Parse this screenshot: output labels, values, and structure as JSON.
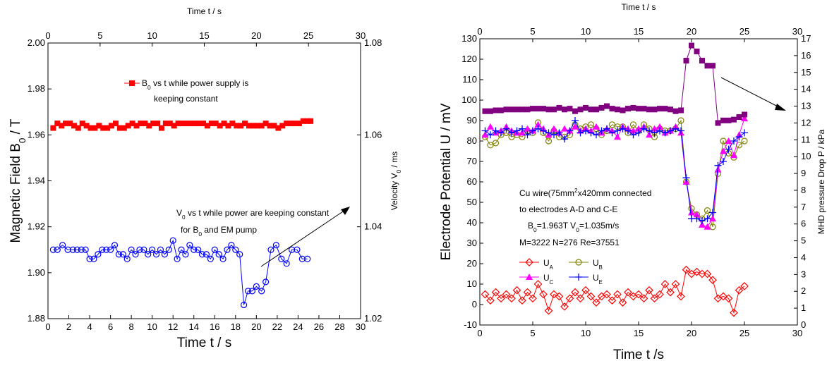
{
  "chart_data": [
    {
      "type": "scatter",
      "xlabel": "Time t / s",
      "x2label": "Time t / s",
      "ylabel": "Magnetic Field B0 / T",
      "y2label": "Velocity V0 / ms",
      "xlim": [
        0,
        30
      ],
      "x2lim": [
        0,
        30
      ],
      "ylim": [
        1.88,
        2.0
      ],
      "y2lim": [
        1.02,
        1.08
      ],
      "xticks": [
        "0",
        "2",
        "4",
        "6",
        "8",
        "10",
        "12",
        "14",
        "16",
        "18",
        "20",
        "22",
        "24",
        "26",
        "28",
        "30"
      ],
      "x2ticks": [
        "0",
        "5",
        "10",
        "15",
        "20",
        "25",
        "30"
      ],
      "yticks": [
        "1.88",
        "1.90",
        "1.92",
        "1.94",
        "1.96",
        "1.98",
        "2.00"
      ],
      "y2ticks": [
        "1.02",
        "1.04",
        "1.06",
        "1.08"
      ],
      "annotations": [
        "B0 vs t  while power supply is",
        "keeping constant",
        "V0 vs t while power are keeping constant",
        "for B0 and EM pump"
      ],
      "series": [
        {
          "name": "B0 vs t  while power supply is keeping constant",
          "color": "#ff0000",
          "marker": "filled-square",
          "axis": "left",
          "x": [
            0.5,
            0.9,
            1.3,
            1.7,
            2.1,
            2.5,
            2.9,
            3.3,
            3.7,
            4.1,
            4.5,
            4.9,
            5.3,
            5.7,
            6.1,
            6.5,
            6.9,
            7.3,
            7.7,
            8.1,
            8.5,
            8.9,
            9.3,
            9.7,
            10.1,
            10.5,
            10.9,
            11.3,
            11.7,
            12.1,
            12.5,
            12.9,
            13.3,
            13.7,
            14.1,
            14.5,
            14.9,
            15.3,
            15.7,
            16.1,
            16.5,
            16.9,
            17.3,
            17.7,
            18.1,
            18.5,
            18.9,
            19.3,
            19.7,
            20.1,
            20.5,
            20.9,
            21.3,
            21.7,
            22.1,
            22.5,
            22.9,
            23.3,
            23.7,
            24.1,
            24.5,
            24.9,
            25.2
          ],
          "y": [
            1.963,
            1.965,
            1.964,
            1.965,
            1.965,
            1.964,
            1.963,
            1.965,
            1.964,
            1.963,
            1.963,
            1.964,
            1.963,
            1.963,
            1.964,
            1.965,
            1.963,
            1.963,
            1.964,
            1.965,
            1.964,
            1.965,
            1.965,
            1.964,
            1.965,
            1.965,
            1.963,
            1.965,
            1.965,
            1.964,
            1.965,
            1.965,
            1.965,
            1.965,
            1.965,
            1.965,
            1.965,
            1.964,
            1.965,
            1.965,
            1.964,
            1.965,
            1.964,
            1.965,
            1.964,
            1.964,
            1.965,
            1.964,
            1.964,
            1.964,
            1.964,
            1.965,
            1.964,
            1.964,
            1.963,
            1.964,
            1.965,
            1.965,
            1.965,
            1.965,
            1.966,
            1.966,
            1.966
          ]
        },
        {
          "name": "V0 vs t while power are keeping constant for B0 and EM pump",
          "color": "#0000ff",
          "marker": "open-circle",
          "axis": "left",
          "x": [
            0.5,
            0.9,
            1.4,
            1.9,
            2.4,
            2.8,
            3.2,
            3.6,
            4.0,
            4.4,
            4.8,
            5.2,
            5.6,
            6.0,
            6.4,
            6.8,
            7.2,
            7.6,
            8.0,
            8.4,
            8.8,
            9.2,
            9.6,
            10.0,
            10.4,
            10.8,
            11.2,
            11.6,
            12.0,
            12.4,
            12.8,
            13.2,
            13.6,
            14.0,
            14.4,
            14.8,
            15.2,
            15.6,
            16.0,
            16.4,
            16.8,
            17.2,
            17.6,
            18.0,
            18.4,
            18.8,
            19.2,
            19.6,
            20.0,
            20.5,
            20.9,
            21.4,
            21.9,
            22.4,
            22.9,
            23.4,
            23.9,
            24.4,
            24.9
          ],
          "y": [
            1.91,
            1.91,
            1.912,
            1.91,
            1.91,
            1.91,
            1.91,
            1.91,
            1.906,
            1.906,
            1.908,
            1.91,
            1.91,
            1.91,
            1.912,
            1.908,
            1.908,
            1.906,
            1.91,
            1.908,
            1.91,
            1.91,
            1.908,
            1.91,
            1.908,
            1.91,
            1.908,
            1.91,
            1.914,
            1.906,
            1.91,
            1.908,
            1.912,
            1.91,
            1.91,
            1.908,
            1.908,
            1.906,
            1.91,
            1.908,
            1.906,
            1.91,
            1.912,
            1.91,
            1.908,
            1.886,
            1.892,
            1.892,
            1.894,
            1.892,
            1.896,
            1.91,
            1.912,
            1.906,
            1.904,
            1.91,
            1.91,
            1.906,
            1.906
          ]
        }
      ]
    },
    {
      "type": "scatter",
      "xlabel": "Time t /s",
      "x2label": "Time t / s",
      "ylabel": "Electrode Potential U / mV",
      "y2label": "MHD pressure Drop P / kPa",
      "xlim": [
        0,
        30
      ],
      "x2lim": [
        0,
        30
      ],
      "ylim": [
        -10,
        130
      ],
      "y2lim": [
        0,
        17
      ],
      "xticks": [
        "0",
        "5",
        "10",
        "15",
        "20",
        "25",
        "30"
      ],
      "x2ticks": [
        "0",
        "5",
        "10",
        "15",
        "20",
        "25",
        "30"
      ],
      "yticks": [
        "-10",
        "0",
        "10",
        "20",
        "30",
        "40",
        "50",
        "60",
        "70",
        "80",
        "90",
        "100",
        "110",
        "120",
        "130"
      ],
      "y2ticks": [
        "0",
        "1",
        "2",
        "3",
        "4",
        "5",
        "6",
        "7",
        "8",
        "9",
        "10",
        "11",
        "12",
        "13",
        "14",
        "15",
        "16",
        "17"
      ],
      "annotations": [
        "Cu wire(75mm2x420mm connected",
        "to electrodes A-D and C-E",
        "B0=1.963T V0=1.035m/s",
        "M=3222  N=276 Re=37551"
      ],
      "series": [
        {
          "name": "UA",
          "color": "#ff0000",
          "marker": "open-diamond",
          "x": [
            0.5,
            1.0,
            1.5,
            2.0,
            2.5,
            3.0,
            3.5,
            4.0,
            4.5,
            5.0,
            5.5,
            6.0,
            6.5,
            7.0,
            7.5,
            8.0,
            8.5,
            9.0,
            9.5,
            10.0,
            10.5,
            11.0,
            11.5,
            12.0,
            12.5,
            13.0,
            13.5,
            14.0,
            14.5,
            15.0,
            15.5,
            16.0,
            16.5,
            17.0,
            17.5,
            18.0,
            18.5,
            19.0,
            19.5,
            20.0,
            20.5,
            21.0,
            21.5,
            22.0,
            22.5,
            23.0,
            23.5,
            24.0,
            24.5,
            25.0
          ],
          "y": [
            5,
            2,
            6,
            3,
            5,
            3,
            7,
            2,
            6,
            3,
            10,
            5,
            -3,
            5,
            4,
            -1,
            3,
            6,
            3,
            7,
            4,
            1,
            4,
            5,
            2,
            5,
            1,
            6,
            4,
            5,
            3,
            7,
            3,
            5,
            10,
            6,
            10,
            4,
            17,
            15,
            16,
            15,
            15,
            12,
            3,
            4,
            3,
            -4,
            7,
            9
          ]
        },
        {
          "name": "UB",
          "color": "#808000",
          "marker": "open-circle",
          "x": [
            0.5,
            1.0,
            1.5,
            2.0,
            2.5,
            3.0,
            3.5,
            4.0,
            4.5,
            5.0,
            5.5,
            6.0,
            6.5,
            7.0,
            7.5,
            8.0,
            8.5,
            9.0,
            9.5,
            10.0,
            10.5,
            11.0,
            11.5,
            12.0,
            12.5,
            13.0,
            13.5,
            14.0,
            14.5,
            15.0,
            15.5,
            16.0,
            16.5,
            17.0,
            17.5,
            18.0,
            18.5,
            19.0,
            19.5,
            20.0,
            20.5,
            21.0,
            21.5,
            22.0,
            22.5,
            23.0,
            23.5,
            24.0,
            24.5,
            25.0
          ],
          "y": [
            82,
            78,
            79,
            83,
            84,
            82,
            83,
            82,
            85,
            84,
            89,
            84,
            80,
            85,
            82,
            82,
            83,
            88,
            86,
            87,
            88,
            86,
            83,
            85,
            88,
            87,
            87,
            84,
            88,
            85,
            88,
            86,
            82,
            86,
            85,
            85,
            86,
            90,
            60,
            47,
            44,
            42,
            46,
            38,
            64,
            80,
            74,
            72,
            78,
            80
          ]
        },
        {
          "name": "UC",
          "color": "#ff00ff",
          "marker": "filled-triangle",
          "x": [
            0.5,
            1.0,
            1.5,
            2.0,
            2.5,
            3.0,
            3.5,
            4.0,
            4.5,
            5.0,
            5.5,
            6.0,
            6.5,
            7.0,
            7.5,
            8.0,
            8.5,
            9.0,
            9.5,
            10.0,
            10.5,
            11.0,
            11.5,
            12.0,
            12.5,
            13.0,
            13.5,
            14.0,
            14.5,
            15.0,
            15.5,
            16.0,
            16.5,
            17.0,
            17.5,
            18.0,
            18.5,
            19.0,
            19.5,
            20.0,
            20.5,
            21.0,
            21.5,
            22.0,
            22.5,
            23.0,
            23.5,
            24.0,
            24.5,
            25.0
          ],
          "y": [
            83,
            87,
            84,
            85,
            87,
            85,
            84,
            84,
            86,
            85,
            88,
            86,
            83,
            86,
            84,
            86,
            85,
            87,
            85,
            86,
            85,
            87,
            84,
            86,
            85,
            82,
            87,
            86,
            85,
            86,
            87,
            83,
            86,
            87,
            84,
            85,
            87,
            84,
            60,
            45,
            44,
            39,
            38,
            42,
            66,
            75,
            80,
            73,
            83,
            91
          ]
        },
        {
          "name": "UE",
          "color": "#0000ff",
          "marker": "plus",
          "x": [
            0.5,
            1.0,
            1.5,
            2.0,
            2.5,
            3.0,
            3.5,
            4.0,
            4.5,
            5.0,
            5.5,
            6.0,
            6.5,
            7.0,
            7.5,
            8.0,
            8.5,
            9.0,
            9.5,
            10.0,
            10.5,
            11.0,
            11.5,
            12.0,
            12.5,
            13.0,
            13.5,
            14.0,
            14.5,
            15.0,
            15.5,
            16.0,
            16.5,
            17.0,
            17.5,
            18.0,
            18.5,
            19.0,
            19.5,
            20.0,
            20.5,
            21.0,
            21.5,
            22.0,
            22.5,
            23.0,
            23.5,
            24.0,
            24.5,
            25.0
          ],
          "y": [
            85,
            83,
            85,
            84,
            86,
            84,
            85,
            86,
            83,
            85,
            86,
            85,
            84,
            83,
            84,
            81,
            85,
            90,
            84,
            85,
            84,
            83,
            85,
            86,
            84,
            85,
            86,
            85,
            83,
            84,
            86,
            85,
            84,
            85,
            84,
            85,
            86,
            85,
            62,
            42,
            42,
            41,
            42,
            45,
            68,
            70,
            76,
            80,
            82,
            84
          ]
        },
        {
          "name": "MHD pressure drop",
          "color": "#800080",
          "marker": "filled-square",
          "axis": "right",
          "x": [
            0.5,
            1.0,
            1.5,
            2.0,
            2.5,
            3.0,
            3.5,
            4.0,
            4.5,
            5.0,
            5.5,
            6.0,
            6.5,
            7.0,
            7.5,
            8.0,
            8.5,
            9.0,
            9.5,
            10.0,
            10.5,
            11.0,
            11.5,
            12.0,
            12.5,
            13.0,
            13.5,
            14.0,
            14.5,
            15.0,
            15.5,
            16.0,
            16.5,
            17.0,
            17.5,
            18.0,
            18.5,
            19.0,
            19.5,
            20.0,
            20.5,
            21.0,
            21.5,
            22.0,
            22.5,
            23.0,
            23.5,
            24.0,
            24.5,
            25.0
          ],
          "y": [
            12.7,
            12.7,
            12.75,
            12.75,
            12.8,
            12.8,
            12.8,
            12.8,
            12.8,
            12.85,
            12.85,
            12.85,
            12.8,
            12.8,
            12.9,
            12.8,
            12.85,
            12.7,
            12.8,
            12.9,
            12.8,
            12.8,
            12.9,
            13.0,
            12.85,
            12.8,
            12.75,
            12.85,
            12.9,
            12.85,
            12.85,
            12.8,
            12.8,
            12.85,
            12.85,
            12.8,
            12.7,
            12.75,
            15.7,
            16.6,
            16.25,
            15.7,
            15.4,
            15.4,
            12.0,
            12.15,
            12.15,
            12.2,
            12.35,
            12.5
          ]
        }
      ]
    }
  ]
}
